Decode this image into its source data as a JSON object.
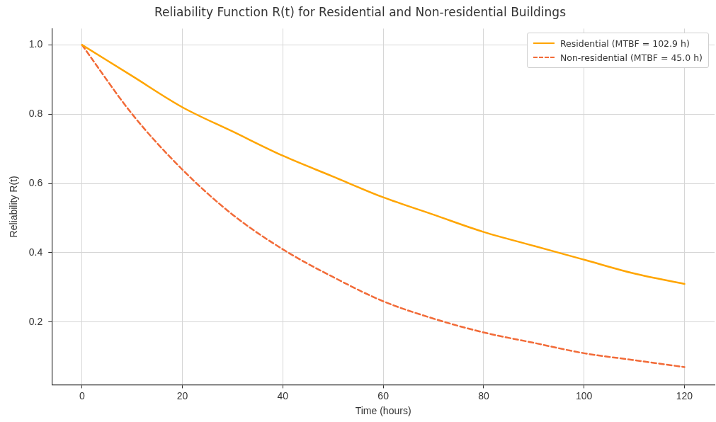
{
  "chart_data": {
    "type": "line",
    "title": "Reliability Function R(t) for Residential and Non-residential Buildings",
    "xlabel": "Time (hours)",
    "ylabel": "Reliability R(t)",
    "x": [
      0,
      10,
      20,
      30,
      40,
      50,
      60,
      70,
      80,
      90,
      100,
      110,
      120
    ],
    "series": [
      {
        "name": "Residential (MTBF = 102.9 h)",
        "color": "#ffa500",
        "line_style": "solid",
        "values": [
          1.0,
          0.91,
          0.82,
          0.75,
          0.68,
          0.62,
          0.56,
          0.51,
          0.46,
          0.42,
          0.38,
          0.34,
          0.31
        ]
      },
      {
        "name": "Non-residential (MTBF = 45.0 h)",
        "color": "#f26b38",
        "line_style": "dashed",
        "values": [
          1.0,
          0.8,
          0.64,
          0.51,
          0.41,
          0.33,
          0.26,
          0.21,
          0.17,
          0.14,
          0.11,
          0.09,
          0.07
        ]
      }
    ],
    "xlim": [
      -6,
      126
    ],
    "xticks": [
      0,
      20,
      40,
      60,
      80,
      100,
      120
    ],
    "ylim": [
      0.019,
      1.047
    ],
    "yticks": [
      {
        "value": 0.2,
        "label": "0.2"
      },
      {
        "value": 0.4,
        "label": "0.4"
      },
      {
        "value": 0.6,
        "label": "0.6"
      },
      {
        "value": 0.8,
        "label": "0.8"
      },
      {
        "value": 1.0,
        "label": "1.0"
      }
    ],
    "grid": true,
    "legend": "top right",
    "marker": "none"
  }
}
